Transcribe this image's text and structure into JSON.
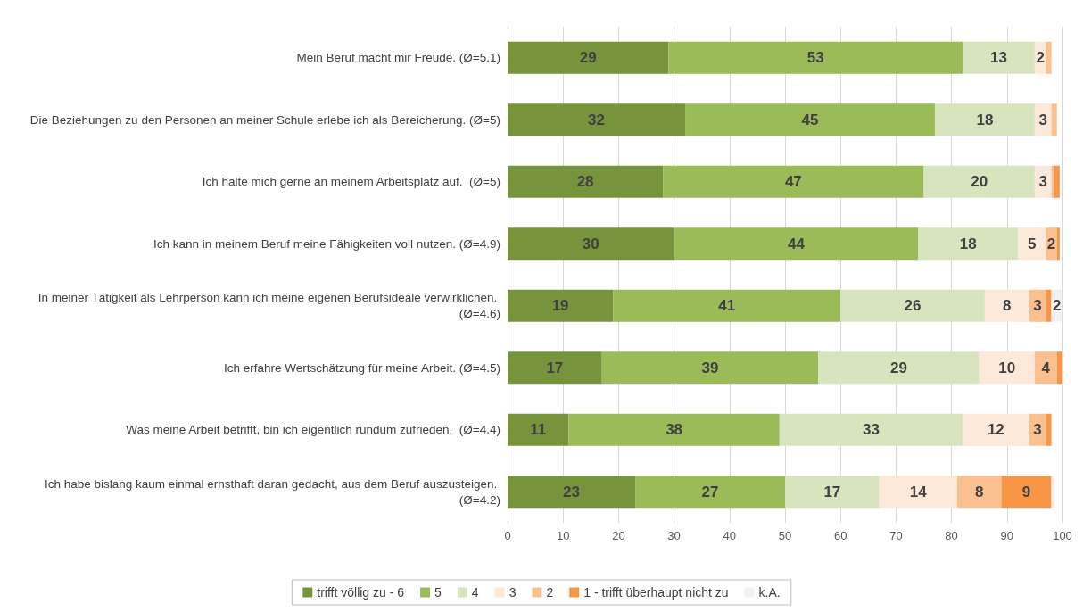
{
  "chart_data": {
    "type": "bar",
    "orientation": "horizontal",
    "stacked": true,
    "categories": [
      "Mein Beruf macht mir Freude. (Ø=5.1)",
      "Die Beziehungen zu den Personen an meiner Schule erlebe ich als Bereicherung. (Ø=5)",
      "Ich halte mich gerne an meinem Arbeitsplatz auf.  (Ø=5)",
      "Ich kann in meinem Beruf meine Fähigkeiten voll nutzen. (Ø=4.9)",
      "In meiner Tätigkeit als Lehrperson kann ich meine eigenen Berufsideale verwirklichen. (Ø=4.6)",
      "Ich erfahre Wertschätzung für meine Arbeit. (Ø=4.5)",
      "Was meine Arbeit betrifft, bin ich eigentlich rundum zufrieden.  (Ø=4.4)",
      "Ich habe bislang kaum einmal ernsthaft daran gedacht, aus dem Beruf auszusteigen. (Ø=4.2)"
    ],
    "series": [
      {
        "name": "trifft völlig zu - 6",
        "color": "#77933c",
        "values": [
          29,
          32,
          28,
          30,
          19,
          17,
          11,
          23
        ],
        "value_labels": [
          "29",
          "32",
          "28",
          "30",
          "19",
          "17",
          "11",
          "23"
        ]
      },
      {
        "name": "5",
        "color": "#9bbb59",
        "values": [
          53,
          45,
          47,
          44,
          41,
          39,
          38,
          27
        ],
        "value_labels": [
          "53",
          "45",
          "47",
          "44",
          "41",
          "39",
          "38",
          "27"
        ]
      },
      {
        "name": "4",
        "color": "#d7e4bd",
        "values": [
          13,
          18,
          20,
          18,
          26,
          29,
          33,
          17
        ],
        "value_labels": [
          "13",
          "18",
          "20",
          "18",
          "26",
          "29",
          "33",
          "17"
        ]
      },
      {
        "name": "3",
        "color": "#fde9d9",
        "values": [
          2,
          3,
          3,
          5,
          8,
          10,
          12,
          14
        ],
        "value_labels": [
          "2",
          "3",
          "3",
          "5",
          "8",
          "10",
          "12",
          "14"
        ]
      },
      {
        "name": "2",
        "color": "#fac090",
        "values": [
          1,
          1,
          0.5,
          2,
          3,
          4,
          3,
          8
        ],
        "value_labels": [
          null,
          null,
          null,
          "2",
          "3",
          "4",
          "3",
          "8"
        ]
      },
      {
        "name": "1 - trifft überhaupt nicht zu",
        "color": "#f79646",
        "values": [
          0,
          0,
          1,
          0.5,
          1,
          1,
          1,
          9
        ],
        "value_labels": [
          null,
          null,
          null,
          null,
          null,
          null,
          null,
          "9"
        ]
      },
      {
        "name": "k.A.",
        "color": "#f2f2f2",
        "values": [
          null,
          null,
          null,
          null,
          2,
          null,
          null,
          0.5
        ],
        "value_labels": [
          null,
          null,
          null,
          null,
          "2",
          null,
          null,
          null
        ]
      }
    ],
    "xlim": [
      0,
      100
    ],
    "xticks": [
      0,
      10,
      20,
      30,
      40,
      50,
      60,
      70,
      80,
      90,
      100
    ],
    "grid": "x",
    "legend": "bottom"
  }
}
